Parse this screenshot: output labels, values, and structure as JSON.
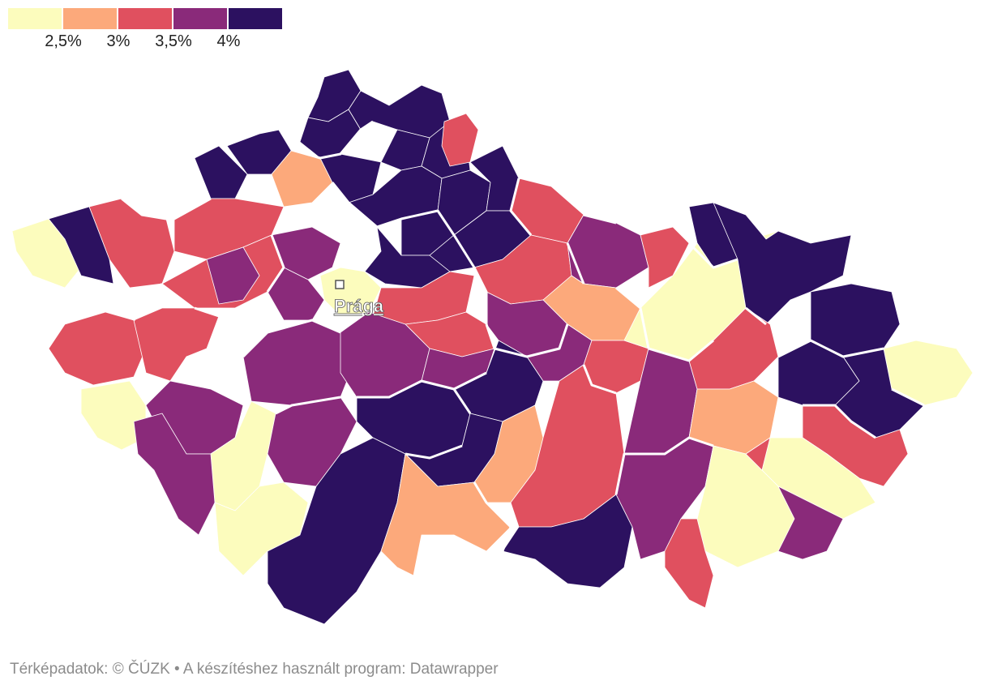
{
  "legend": {
    "colors": [
      "#fcfcbd",
      "#fca97b",
      "#e0505f",
      "#8a2a7a",
      "#2c1160"
    ],
    "labels": [
      "2,5%",
      "3%",
      "3,5%",
      "4%"
    ]
  },
  "map": {
    "city": {
      "name": "Prága"
    },
    "fill_color_index_by_region": {
      "teplice": 4,
      "decin": 4,
      "liberec": 4,
      "jablonec": 4,
      "semily": 4,
      "trutnov": 2,
      "sokolov": 4,
      "chomutov": 4,
      "most": 1,
      "litomerice": 4,
      "melnik": 4,
      "karlovy_vary": 2,
      "louny": 2,
      "mlada_boleslav": 4,
      "jicin": 4,
      "nachod": 4,
      "cheb": 0,
      "kladno": 3,
      "praha": 0,
      "nymburk": 4,
      "hradec": 4,
      "rychnov": 2,
      "tachov": 4,
      "plzen_sever": 2,
      "rakovnik": 3,
      "beroun": 3,
      "praha_vychod": 2,
      "kolin": 2,
      "pardubice": 2,
      "usti_orlici": 3,
      "svitavy": 1,
      "sumperk": 2,
      "bruntal": 0,
      "jesenik": 4,
      "domazlice": 2,
      "plzen_jih": 2,
      "pribram": 3,
      "benesov": 3,
      "kutna_hora": 3,
      "chrudim": 3,
      "havlickuv_brod": 4,
      "zdar": 3,
      "blansko": 2,
      "olomouc": 0,
      "opava": 4,
      "ostrava": 4,
      "karvina": 0,
      "klatovy": 0,
      "strakonice": 3,
      "pisek": 0,
      "tabor": 3,
      "pelhrimov": 4,
      "jihlava": 4,
      "trebic": 1,
      "brno_venkov": 2,
      "brno": 3,
      "prostejov": 2,
      "prerov": 1,
      "novy_jicin": 4,
      "frydek": 4,
      "vsetin": 2,
      "zlin": 0,
      "prachatice": 3,
      "cesky_krumlov": 0,
      "ceske_budejovice": 4,
      "jindrichuv_hradec": 1,
      "znojmo": 4,
      "breclav": 3,
      "hodonin": 0,
      "kromeriz": 2,
      "uherske_hradiste": 3,
      "vyskov": 2
    }
  },
  "footer": {
    "source_label": "Térképadatok: © ČÚZK",
    "separator": "•",
    "tool_label": "A készítéshez használt program: Datawrapper"
  }
}
